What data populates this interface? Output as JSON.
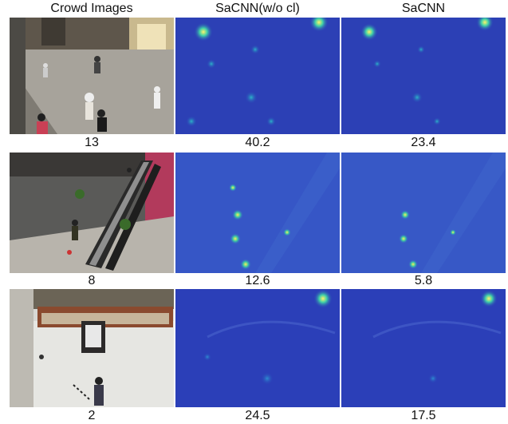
{
  "figure": {
    "columns": [
      "Crowd Images",
      "SaCNN(w/o cl)",
      "SaCNN"
    ],
    "rows": [
      {
        "counts": [
          "13",
          "40.2",
          "23.4"
        ]
      },
      {
        "counts": [
          "8",
          "12.6",
          "5.8"
        ]
      },
      {
        "counts": [
          "2",
          "24.5",
          "17.5"
        ]
      }
    ]
  },
  "colors": {
    "density_bg": "#2a3fb8",
    "density_hot": "#ffe94a",
    "density_mid": "#35c4b0"
  }
}
